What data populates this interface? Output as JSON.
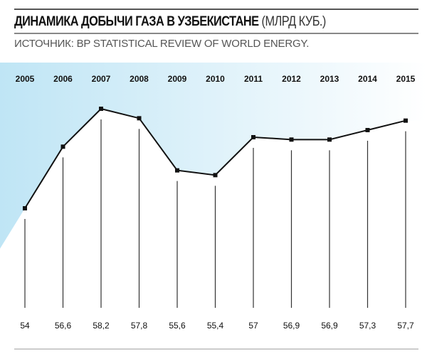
{
  "header": {
    "title": "ДИНАМИКА ДОБЫЧИ ГАЗА В УЗБЕКИСТАНЕ",
    "unit": "(МЛРД КУБ.)",
    "source": "ИСТОЧНИК: BP STATISTICAL REVIEW OF WORLD ENERGY."
  },
  "colors": {
    "fill": "#bfe5f5",
    "line": "#111111"
  },
  "chart_data": {
    "type": "line",
    "title": "ДИНАМИКА ДОБЫЧИ ГАЗА В УЗБЕКИСТАНЕ (МЛРД КУБ.)",
    "xlabel": "",
    "ylabel": "млрд куб.",
    "x": [
      "2005",
      "2006",
      "2007",
      "2008",
      "2009",
      "2010",
      "2011",
      "2012",
      "2013",
      "2014",
      "2015"
    ],
    "values": [
      54,
      56.6,
      58.2,
      57.8,
      55.6,
      55.4,
      57,
      56.9,
      56.9,
      57.3,
      57.7
    ],
    "value_labels": [
      "54",
      "56,6",
      "58,2",
      "57,8",
      "55,6",
      "55,4",
      "57",
      "56,9",
      "56,9",
      "57,3",
      "57,7"
    ],
    "ylim": [
      54,
      58.2
    ],
    "grid": false,
    "legend": "none"
  }
}
